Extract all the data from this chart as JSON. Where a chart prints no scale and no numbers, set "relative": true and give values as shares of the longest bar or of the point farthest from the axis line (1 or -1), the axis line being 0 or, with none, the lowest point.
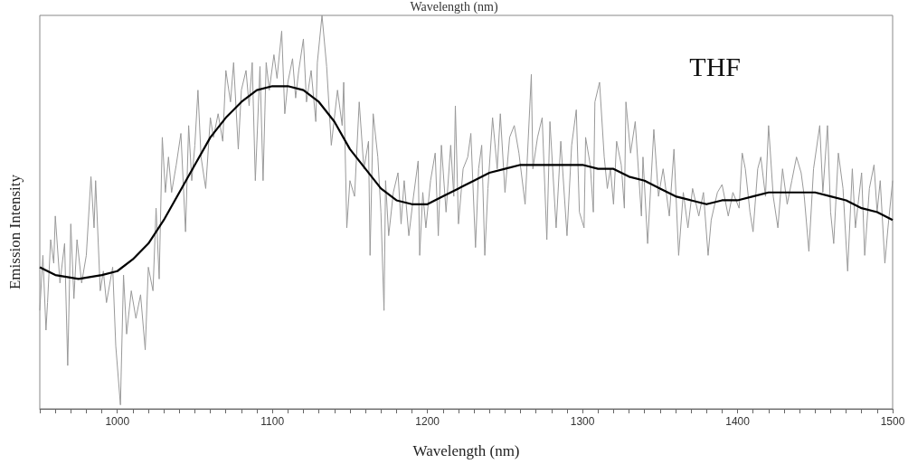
{
  "chart_data": {
    "type": "line",
    "xlabel": "Wavelength (nm)",
    "ylabel": "Emission Intensity",
    "annotations": [
      "THF",
      "Wavelength (nm)"
    ],
    "relative": true,
    "xlim": [
      950,
      1500
    ],
    "xticks": [
      {
        "value": 950,
        "label": null
      },
      {
        "value": 960,
        "label": null
      },
      {
        "value": 970,
        "label": null
      },
      {
        "value": 980,
        "label": null
      },
      {
        "value": 990,
        "label": null
      },
      1000,
      {
        "value": 1010,
        "label": null
      },
      {
        "value": 1020,
        "label": null
      },
      {
        "value": 1030,
        "label": null
      },
      {
        "value": 1040,
        "label": null
      },
      {
        "value": 1050,
        "label": null
      },
      {
        "value": 1060,
        "label": null
      },
      {
        "value": 1070,
        "label": null
      },
      {
        "value": 1080,
        "label": null
      },
      {
        "value": 1090,
        "label": null
      },
      1100,
      {
        "value": 1110,
        "label": null
      },
      {
        "value": 1120,
        "label": null
      },
      {
        "value": 1130,
        "label": null
      },
      {
        "value": 1140,
        "label": null
      },
      {
        "value": 1150,
        "label": null
      },
      {
        "value": 1160,
        "label": null
      },
      {
        "value": 1170,
        "label": null
      },
      {
        "value": 1180,
        "label": null
      },
      {
        "value": 1190,
        "label": null
      },
      1200,
      {
        "value": 1210,
        "label": null
      },
      {
        "value": 1220,
        "label": null
      },
      {
        "value": 1230,
        "label": null
      },
      {
        "value": 1240,
        "label": null
      },
      {
        "value": 1250,
        "label": null
      },
      {
        "value": 1260,
        "label": null
      },
      {
        "value": 1270,
        "label": null
      },
      {
        "value": 1280,
        "label": null
      },
      {
        "value": 1290,
        "label": null
      },
      1300,
      {
        "value": 1310,
        "label": null
      },
      {
        "value": 1320,
        "label": null
      },
      {
        "value": 1330,
        "label": null
      },
      {
        "value": 1340,
        "label": null
      },
      {
        "value": 1350,
        "label": null
      },
      {
        "value": 1360,
        "label": null
      },
      {
        "value": 1370,
        "label": null
      },
      {
        "value": 1380,
        "label": null
      },
      {
        "value": 1390,
        "label": null
      },
      1400,
      {
        "value": 1410,
        "label": null
      },
      {
        "value": 1420,
        "label": null
      },
      {
        "value": 1430,
        "label": null
      },
      {
        "value": 1440,
        "label": null
      },
      {
        "value": 1450,
        "label": null
      },
      {
        "value": 1460,
        "label": null
      },
      {
        "value": 1470,
        "label": null
      },
      {
        "value": 1480,
        "label": null
      },
      {
        "value": 1490,
        "label": null
      },
      1500
    ],
    "series": [
      {
        "color": "#999999",
        "x": [
          950,
          952,
          954,
          955,
          957,
          959,
          960,
          963,
          966,
          968,
          970,
          972,
          974,
          977,
          980,
          983,
          985,
          986,
          989,
          991,
          993,
          997,
          999,
          1002,
          1004,
          1006,
          1009,
          1012,
          1015,
          1018,
          1020,
          1023,
          1025,
          1027,
          1029,
          1031,
          1033,
          1035,
          1038,
          1041,
          1044,
          1046,
          1048,
          1050,
          1052,
          1054,
          1057,
          1060,
          1062,
          1065,
          1068,
          1070,
          1073,
          1075,
          1078,
          1080,
          1083,
          1085,
          1087,
          1089,
          1092,
          1094,
          1096,
          1098,
          1101,
          1103,
          1106,
          1108,
          1110,
          1113,
          1115,
          1117,
          1120,
          1122,
          1125,
          1128,
          1129,
          1132,
          1135,
          1138,
          1142,
          1145,
          1146,
          1148,
          1150,
          1153,
          1156,
          1159,
          1162,
          1163,
          1165,
          1168,
          1170,
          1172,
          1173,
          1175,
          1178,
          1181,
          1183,
          1185,
          1188,
          1191,
          1194,
          1195,
          1197,
          1199,
          1202,
          1205,
          1207,
          1209,
          1212,
          1215,
          1217,
          1218,
          1220,
          1223,
          1226,
          1228,
          1231,
          1233,
          1235,
          1237,
          1239,
          1242,
          1245,
          1247,
          1250,
          1253,
          1256,
          1259,
          1263,
          1267,
          1268,
          1271,
          1274,
          1277,
          1279,
          1283,
          1286,
          1290,
          1293,
          1296,
          1298,
          1301,
          1302,
          1305,
          1307,
          1308,
          1311,
          1314,
          1316,
          1318,
          1320,
          1322,
          1325,
          1327,
          1328,
          1331,
          1334,
          1338,
          1339,
          1342,
          1346,
          1349,
          1352,
          1356,
          1359,
          1362,
          1365,
          1368,
          1371,
          1375,
          1378,
          1381,
          1383,
          1387,
          1390,
          1394,
          1397,
          1401,
          1403,
          1405,
          1408,
          1410,
          1413,
          1415,
          1418,
          1420,
          1423,
          1426,
          1429,
          1432,
          1435,
          1438,
          1441,
          1443,
          1446,
          1449,
          1453,
          1455,
          1458,
          1460,
          1462,
          1465,
          1468,
          1471,
          1474,
          1476,
          1480,
          1482,
          1485,
          1488,
          1490,
          1492,
          1495,
          1497,
          1500
        ],
        "values": [
          0.25,
          0.39,
          0.2,
          0.27,
          0.43,
          0.37,
          0.49,
          0.32,
          0.42,
          0.11,
          0.47,
          0.28,
          0.43,
          0.32,
          0.39,
          0.59,
          0.46,
          0.58,
          0.3,
          0.35,
          0.27,
          0.36,
          0.16,
          0.01,
          0.34,
          0.19,
          0.3,
          0.23,
          0.29,
          0.15,
          0.36,
          0.3,
          0.51,
          0.33,
          0.69,
          0.55,
          0.64,
          0.55,
          0.62,
          0.7,
          0.45,
          0.72,
          0.58,
          0.67,
          0.81,
          0.64,
          0.56,
          0.74,
          0.69,
          0.75,
          0.68,
          0.86,
          0.78,
          0.88,
          0.66,
          0.81,
          0.86,
          0.77,
          0.88,
          0.58,
          0.87,
          0.58,
          0.88,
          0.81,
          0.9,
          0.84,
          0.96,
          0.75,
          0.83,
          0.89,
          0.79,
          0.86,
          0.94,
          0.78,
          0.86,
          0.73,
          0.88,
          1,
          0.87,
          0.67,
          0.81,
          0.72,
          0.83,
          0.46,
          0.58,
          0.54,
          0.78,
          0.61,
          0.68,
          0.39,
          0.75,
          0.64,
          0.5,
          0.25,
          0.58,
          0.44,
          0.55,
          0.6,
          0.47,
          0.58,
          0.44,
          0.54,
          0.63,
          0.39,
          0.55,
          0.46,
          0.58,
          0.65,
          0.44,
          0.67,
          0.5,
          0.67,
          0.54,
          0.77,
          0.47,
          0.61,
          0.64,
          0.7,
          0.41,
          0.61,
          0.67,
          0.39,
          0.56,
          0.74,
          0.61,
          0.75,
          0.55,
          0.69,
          0.72,
          0.65,
          0.52,
          0.85,
          0.61,
          0.69,
          0.74,
          0.43,
          0.73,
          0.46,
          0.68,
          0.44,
          0.67,
          0.76,
          0.5,
          0.46,
          0.69,
          0.62,
          0.5,
          0.78,
          0.83,
          0.64,
          0.56,
          0.61,
          0.52,
          0.68,
          0.62,
          0.51,
          0.78,
          0.65,
          0.73,
          0.49,
          0.64,
          0.42,
          0.71,
          0.54,
          0.61,
          0.49,
          0.66,
          0.39,
          0.55,
          0.46,
          0.56,
          0.49,
          0.55,
          0.39,
          0.48,
          0.55,
          0.57,
          0.49,
          0.55,
          0.51,
          0.65,
          0.61,
          0.5,
          0.45,
          0.61,
          0.64,
          0.54,
          0.72,
          0.54,
          0.46,
          0.61,
          0.52,
          0.58,
          0.64,
          0.6,
          0.54,
          0.4,
          0.61,
          0.72,
          0.55,
          0.72,
          0.5,
          0.42,
          0.65,
          0.56,
          0.35,
          0.61,
          0.46,
          0.6,
          0.39,
          0.56,
          0.62,
          0.5,
          0.58,
          0.37,
          0.46,
          0.58
        ]
      },
      {
        "color": "#000000",
        "x": [
          950,
          960,
          975,
          990,
          1000,
          1010,
          1020,
          1030,
          1040,
          1050,
          1060,
          1070,
          1080,
          1090,
          1100,
          1110,
          1120,
          1130,
          1140,
          1150,
          1160,
          1170,
          1180,
          1190,
          1200,
          1210,
          1220,
          1230,
          1240,
          1250,
          1260,
          1270,
          1280,
          1290,
          1300,
          1310,
          1320,
          1330,
          1340,
          1350,
          1360,
          1370,
          1380,
          1390,
          1400,
          1410,
          1420,
          1430,
          1440,
          1450,
          1460,
          1470,
          1480,
          1490,
          1500
        ],
        "values": [
          0.36,
          0.34,
          0.33,
          0.34,
          0.35,
          0.38,
          0.42,
          0.48,
          0.55,
          0.62,
          0.69,
          0.74,
          0.78,
          0.81,
          0.82,
          0.82,
          0.81,
          0.78,
          0.73,
          0.66,
          0.61,
          0.56,
          0.53,
          0.52,
          0.52,
          0.54,
          0.56,
          0.58,
          0.6,
          0.61,
          0.62,
          0.62,
          0.62,
          0.62,
          0.62,
          0.61,
          0.61,
          0.59,
          0.58,
          0.56,
          0.54,
          0.53,
          0.52,
          0.53,
          0.53,
          0.54,
          0.55,
          0.55,
          0.55,
          0.55,
          0.54,
          0.53,
          0.51,
          0.5,
          0.48
        ]
      }
    ]
  }
}
